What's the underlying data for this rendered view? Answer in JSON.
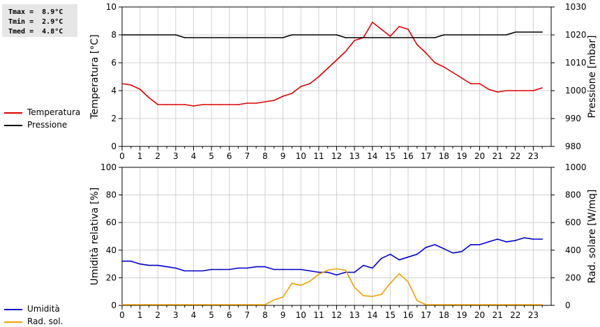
{
  "stats": {
    "tmax": "Tmax =  8.9°C",
    "tmin": "Tmin =  2.9°C",
    "tmed": "Tmed =  4.8°C"
  },
  "chart_data": [
    {
      "type": "line",
      "xlim": [
        0,
        24
      ],
      "x_ticks": [
        "0",
        "1",
        "2",
        "3",
        "4",
        "5",
        "6",
        "7",
        "8",
        "9",
        "10",
        "11",
        "12",
        "13",
        "14",
        "15",
        "16",
        "17",
        "18",
        "19",
        "20",
        "21",
        "22",
        "23"
      ],
      "ylabel_left": "Temperatura [°C]",
      "ylim_left": [
        0,
        10
      ],
      "yticks_left": [
        "0",
        "2",
        "4",
        "6",
        "8",
        "10"
      ],
      "ylabel_right": "Pressione [mbar]",
      "ylim_right": [
        980,
        1030
      ],
      "yticks_right": [
        "980",
        "990",
        "1000",
        "1010",
        "1020",
        "1030"
      ],
      "grid": true,
      "legend_placement": "left",
      "series": [
        {
          "name": "Temperatura",
          "axis": "left",
          "color": "#dd0000",
          "points": [
            [
              0,
              4.5
            ],
            [
              0.5,
              4.4
            ],
            [
              1,
              4.1
            ],
            [
              1.5,
              3.5
            ],
            [
              2,
              3.0
            ],
            [
              2.5,
              3.0
            ],
            [
              3,
              3.0
            ],
            [
              3.5,
              3.0
            ],
            [
              4,
              2.9
            ],
            [
              4.5,
              3.0
            ],
            [
              5,
              3.0
            ],
            [
              5.5,
              3.0
            ],
            [
              6,
              3.0
            ],
            [
              6.5,
              3.0
            ],
            [
              7,
              3.1
            ],
            [
              7.5,
              3.1
            ],
            [
              8,
              3.2
            ],
            [
              8.5,
              3.3
            ],
            [
              9,
              3.6
            ],
            [
              9.5,
              3.8
            ],
            [
              10,
              4.3
            ],
            [
              10.5,
              4.5
            ],
            [
              11,
              5.0
            ],
            [
              11.5,
              5.6
            ],
            [
              12,
              6.2
            ],
            [
              12.5,
              6.8
            ],
            [
              13,
              7.6
            ],
            [
              13.5,
              7.8
            ],
            [
              14,
              8.9
            ],
            [
              14.5,
              8.4
            ],
            [
              15,
              7.9
            ],
            [
              15.5,
              8.6
            ],
            [
              16,
              8.4
            ],
            [
              16.5,
              7.3
            ],
            [
              17,
              6.7
            ],
            [
              17.5,
              6.0
            ],
            [
              18,
              5.7
            ],
            [
              18.5,
              5.3
            ],
            [
              19,
              4.9
            ],
            [
              19.5,
              4.5
            ],
            [
              20,
              4.5
            ],
            [
              20.5,
              4.1
            ],
            [
              21,
              3.9
            ],
            [
              21.5,
              4.0
            ],
            [
              22,
              4.0
            ],
            [
              22.5,
              4.0
            ],
            [
              23,
              4.0
            ],
            [
              23.5,
              4.2
            ]
          ]
        },
        {
          "name": "Pressione",
          "axis": "right",
          "color": "#000000",
          "points": [
            [
              0,
              1020
            ],
            [
              3,
              1020
            ],
            [
              3.5,
              1019
            ],
            [
              9,
              1019
            ],
            [
              9.5,
              1020
            ],
            [
              12,
              1020
            ],
            [
              12.5,
              1019
            ],
            [
              17.5,
              1019
            ],
            [
              18,
              1020
            ],
            [
              21.5,
              1020
            ],
            [
              22,
              1021
            ],
            [
              23.5,
              1021
            ]
          ]
        }
      ]
    },
    {
      "type": "line",
      "xlim": [
        0,
        24
      ],
      "x_ticks": [
        "0",
        "1",
        "2",
        "3",
        "4",
        "5",
        "6",
        "7",
        "8",
        "9",
        "10",
        "11",
        "12",
        "13",
        "14",
        "15",
        "16",
        "17",
        "18",
        "19",
        "20",
        "21",
        "22",
        "23"
      ],
      "ylabel_left": "Umidità relativa [%]",
      "ylim_left": [
        0,
        100
      ],
      "yticks_left": [
        "0",
        "20",
        "40",
        "60",
        "80",
        "100"
      ],
      "ylabel_right": "Rad. solare [W/mq]",
      "ylim_right": [
        0,
        1000
      ],
      "yticks_right": [
        "0",
        "200",
        "400",
        "600",
        "800",
        "1000"
      ],
      "grid": true,
      "legend_placement": "left",
      "series": [
        {
          "name": "Umidità",
          "axis": "left",
          "color": "#0000cc",
          "points": [
            [
              0,
              32
            ],
            [
              0.5,
              32
            ],
            [
              1,
              30
            ],
            [
              1.5,
              29
            ],
            [
              2,
              29
            ],
            [
              2.5,
              28
            ],
            [
              3,
              27
            ],
            [
              3.5,
              25
            ],
            [
              4,
              25
            ],
            [
              4.5,
              25
            ],
            [
              5,
              26
            ],
            [
              5.5,
              26
            ],
            [
              6,
              26
            ],
            [
              6.5,
              27
            ],
            [
              7,
              27
            ],
            [
              7.5,
              28
            ],
            [
              8,
              28
            ],
            [
              8.5,
              26
            ],
            [
              9,
              26
            ],
            [
              9.5,
              26
            ],
            [
              10,
              26
            ],
            [
              10.5,
              25
            ],
            [
              11,
              24
            ],
            [
              11.5,
              24
            ],
            [
              12,
              22
            ],
            [
              12.5,
              24
            ],
            [
              13,
              24
            ],
            [
              13.5,
              29
            ],
            [
              14,
              27
            ],
            [
              14.5,
              34
            ],
            [
              15,
              37
            ],
            [
              15.5,
              33
            ],
            [
              16,
              35
            ],
            [
              16.5,
              37
            ],
            [
              17,
              42
            ],
            [
              17.5,
              44
            ],
            [
              18,
              41
            ],
            [
              18.5,
              38
            ],
            [
              19,
              39
            ],
            [
              19.5,
              44
            ],
            [
              20,
              44
            ],
            [
              20.5,
              46
            ],
            [
              21,
              48
            ],
            [
              21.5,
              46
            ],
            [
              22,
              47
            ],
            [
              22.5,
              49
            ],
            [
              23,
              48
            ],
            [
              23.5,
              48
            ]
          ]
        },
        {
          "name": "Rad. sol.",
          "axis": "right",
          "color": "#f0a000",
          "points": [
            [
              0,
              5
            ],
            [
              7.5,
              5
            ],
            [
              8,
              5
            ],
            [
              8.5,
              40
            ],
            [
              9,
              60
            ],
            [
              9.5,
              160
            ],
            [
              10,
              145
            ],
            [
              10.5,
              175
            ],
            [
              11,
              225
            ],
            [
              11.5,
              255
            ],
            [
              12,
              265
            ],
            [
              12.5,
              255
            ],
            [
              13,
              130
            ],
            [
              13.5,
              70
            ],
            [
              14,
              65
            ],
            [
              14.5,
              80
            ],
            [
              15,
              160
            ],
            [
              15.5,
              230
            ],
            [
              16,
              170
            ],
            [
              16.5,
              35
            ],
            [
              17,
              5
            ],
            [
              23.5,
              5
            ]
          ]
        }
      ]
    }
  ]
}
